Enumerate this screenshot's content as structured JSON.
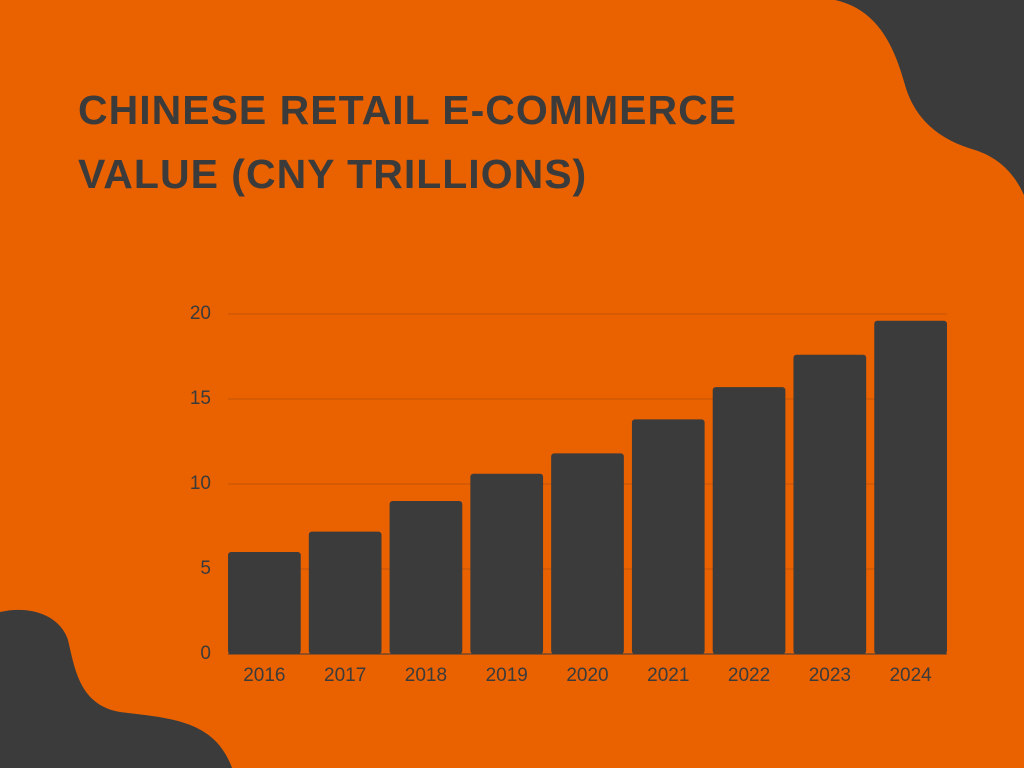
{
  "chart_data": {
    "type": "bar",
    "title": "CHINESE RETAIL E-COMMERCE VALUE (CNY TRILLIONS)",
    "categories": [
      "2016",
      "2017",
      "2018",
      "2019",
      "2020",
      "2021",
      "2022",
      "2023",
      "2024"
    ],
    "values": [
      6.0,
      7.2,
      9.0,
      10.6,
      11.8,
      13.8,
      15.7,
      17.6,
      19.6
    ],
    "color": "#3b3b3b",
    "ylim": [
      0,
      20
    ],
    "yticks": [
      0,
      5,
      10,
      15,
      20
    ],
    "grid": true
  }
}
